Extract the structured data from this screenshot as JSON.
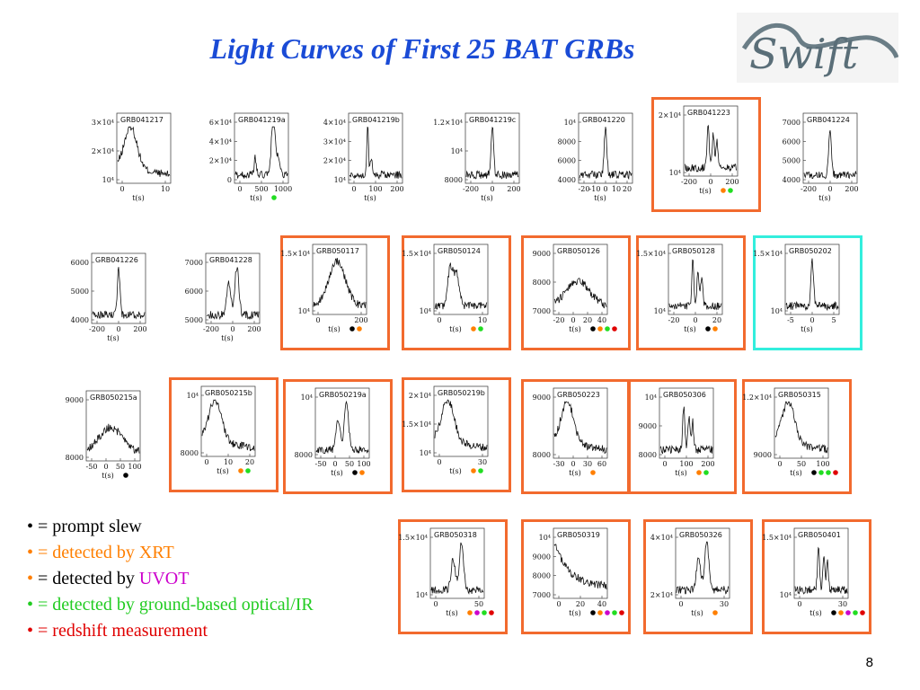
{
  "slide": {
    "title": "Light Curves of First 25 BAT GRBs",
    "page_number": "8",
    "logo_text": "Swift"
  },
  "colors": {
    "prompt_slew": "#000000",
    "xrt": "#ff7f00",
    "uvot": "#cc00cc",
    "optical": "#22dd22",
    "redshift": "#e00000",
    "frame_orange": "#f26a2e",
    "frame_cyan": "#33eedd"
  },
  "legend": [
    {
      "key": "prompt_slew",
      "text": "= prompt slew"
    },
    {
      "key": "xrt",
      "text": "= detected by XRT"
    },
    {
      "key": "uvot",
      "text": "= detected by UVOT"
    },
    {
      "key": "optical",
      "text": "= detected by ground-based optical/IR"
    },
    {
      "key": "redshift",
      "text": "= redshift measurement"
    }
  ],
  "chart_data": [
    {
      "type": "line",
      "title": "GRB041217",
      "xlabel": "t(s)",
      "xticks": [
        "0",
        "10"
      ],
      "yticks": [
        "10⁴",
        "2×10⁴",
        "3×10⁴"
      ],
      "frame": "none",
      "dots": [],
      "shape": "hump-early"
    },
    {
      "type": "line",
      "title": "GRB041219a",
      "xlabel": "t(s)",
      "xticks": [
        "0",
        "500",
        "1000"
      ],
      "yticks": [
        "0",
        "2×10⁴",
        "4×10⁴",
        "6×10⁴"
      ],
      "frame": "none",
      "dots": [
        "optical"
      ],
      "shape": "double-late"
    },
    {
      "type": "line",
      "title": "GRB041219b",
      "xlabel": "t(s)",
      "xticks": [
        "0",
        "100",
        "200"
      ],
      "yticks": [
        "10⁴",
        "2×10⁴",
        "3×10⁴",
        "4×10⁴"
      ],
      "frame": "none",
      "dots": [],
      "shape": "spike-mid"
    },
    {
      "type": "line",
      "title": "GRB041219c",
      "xlabel": "t(s)",
      "xticks": [
        "-200",
        "0",
        "200"
      ],
      "yticks": [
        "8000",
        "10⁴",
        "1.2×10⁴"
      ],
      "frame": "none",
      "dots": [],
      "shape": "spike-center"
    },
    {
      "type": "line",
      "title": "GRB041220",
      "xlabel": "t(s)",
      "xticks": [
        "-20",
        "-10",
        "0",
        "10",
        "20"
      ],
      "yticks": [
        "4000",
        "6000",
        "8000",
        "10⁴"
      ],
      "frame": "none",
      "dots": [],
      "shape": "spike-center"
    },
    {
      "type": "line",
      "title": "GRB041223",
      "xlabel": "t(s)",
      "xticks": [
        "-200",
        "0",
        "200"
      ],
      "yticks": [
        "10⁴",
        "2×10⁴"
      ],
      "frame": "orange",
      "dots": [
        "xrt",
        "optical"
      ],
      "shape": "multi-spike"
    },
    {
      "type": "line",
      "title": "GRB041224",
      "xlabel": "t(s)",
      "xticks": [
        "-200",
        "0",
        "200"
      ],
      "yticks": [
        "4000",
        "5000",
        "6000",
        "7000"
      ],
      "frame": "none",
      "dots": [],
      "shape": "spike-center"
    },
    {
      "type": "line",
      "title": "GRB041226",
      "xlabel": "t(s)",
      "xticks": [
        "-200",
        "0",
        "200"
      ],
      "yticks": [
        "4000",
        "5000",
        "6000"
      ],
      "frame": "none",
      "dots": [],
      "shape": "spike-center"
    },
    {
      "type": "line",
      "title": "GRB041228",
      "xlabel": "t(s)",
      "xticks": [
        "-200",
        "0",
        "200"
      ],
      "yticks": [
        "5000",
        "6000",
        "7000"
      ],
      "frame": "none",
      "dots": [],
      "shape": "double-center"
    },
    {
      "type": "line",
      "title": "GRB050117",
      "xlabel": "t(s)",
      "xticks": [
        "0",
        "200"
      ],
      "yticks": [
        "10⁴",
        "1.5×10⁴"
      ],
      "frame": "orange",
      "dots": [
        "prompt_slew",
        "xrt"
      ],
      "shape": "broad"
    },
    {
      "type": "line",
      "title": "GRB050124",
      "xlabel": "t(s)",
      "xticks": [
        "0",
        "10"
      ],
      "yticks": [
        "10⁴",
        "1.5×10⁴"
      ],
      "frame": "orange",
      "dots": [
        "xrt",
        "optical"
      ],
      "shape": "double-early"
    },
    {
      "type": "line",
      "title": "GRB050126",
      "xlabel": "t(s)",
      "xticks": [
        "-20",
        "0",
        "20",
        "40"
      ],
      "yticks": [
        "7000",
        "8000",
        "9000"
      ],
      "frame": "orange",
      "dots": [
        "prompt_slew",
        "xrt",
        "optical",
        "redshift"
      ],
      "shape": "noisy-bump"
    },
    {
      "type": "line",
      "title": "GRB050128",
      "xlabel": "t(s)",
      "xticks": [
        "-20",
        "0",
        "20"
      ],
      "yticks": [
        "10⁴",
        "1.5×10⁴"
      ],
      "frame": "orange",
      "dots": [
        "prompt_slew",
        "xrt"
      ],
      "shape": "multi-spike"
    },
    {
      "type": "line",
      "title": "GRB050202",
      "xlabel": "t(s)",
      "xticks": [
        "-5",
        "0",
        "5"
      ],
      "yticks": [
        "10⁴",
        "1.5×10⁴"
      ],
      "frame": "cyan",
      "dots": [],
      "shape": "spike-center"
    },
    {
      "type": "line",
      "title": "GRB050215a",
      "xlabel": "t(s)",
      "xticks": [
        "-50",
        "0",
        "50",
        "100"
      ],
      "yticks": [
        "8000",
        "9000"
      ],
      "frame": "none",
      "dots": [
        "prompt_slew"
      ],
      "shape": "noisy-bump"
    },
    {
      "type": "line",
      "title": "GRB050215b",
      "xlabel": "t(s)",
      "xticks": [
        "0",
        "10",
        "20"
      ],
      "yticks": [
        "8000",
        "10⁴"
      ],
      "frame": "orange",
      "dots": [
        "xrt",
        "optical"
      ],
      "shape": "hump-early"
    },
    {
      "type": "line",
      "title": "GRB050219a",
      "xlabel": "t(s)",
      "xticks": [
        "-50",
        "0",
        "50",
        "100"
      ],
      "yticks": [
        "8000",
        "10⁴"
      ],
      "frame": "orange",
      "dots": [
        "prompt_slew",
        "xrt"
      ],
      "shape": "double-center"
    },
    {
      "type": "line",
      "title": "GRB050219b",
      "xlabel": "t(s)",
      "xticks": [
        "0",
        "30"
      ],
      "yticks": [
        "10⁴",
        "1.5×10⁴",
        "2×10⁴"
      ],
      "frame": "orange",
      "dots": [
        "xrt",
        "optical"
      ],
      "shape": "hump-early"
    },
    {
      "type": "line",
      "title": "GRB050223",
      "xlabel": "t(s)",
      "xticks": [
        "-30",
        "0",
        "30",
        "60"
      ],
      "yticks": [
        "8000",
        "9000"
      ],
      "frame": "orange",
      "dots": [
        "xrt"
      ],
      "shape": "hump-early"
    },
    {
      "type": "line",
      "title": "GRB050306",
      "xlabel": "t(s)",
      "xticks": [
        "0",
        "100",
        "200"
      ],
      "yticks": [
        "8000",
        "9000",
        "10⁴"
      ],
      "frame": "orange",
      "dots": [
        "xrt",
        "optical"
      ],
      "shape": "multi-spike"
    },
    {
      "type": "line",
      "title": "GRB050315",
      "xlabel": "t(s)",
      "xticks": [
        "0",
        "50",
        "100"
      ],
      "yticks": [
        "9000",
        "1.2×10⁴"
      ],
      "frame": "orange",
      "dots": [
        "prompt_slew",
        "optical",
        "optical",
        "redshift"
      ],
      "shape": "hump-early"
    },
    {
      "type": "line",
      "title": "GRB050318",
      "xlabel": "t(s)",
      "xticks": [
        "0",
        "50"
      ],
      "yticks": [
        "10⁴",
        "1.5×10⁴"
      ],
      "frame": "orange",
      "dots": [
        "xrt",
        "uvot",
        "optical",
        "redshift"
      ],
      "shape": "double-center"
    },
    {
      "type": "line",
      "title": "GRB050319",
      "xlabel": "t(s)",
      "xticks": [
        "0",
        "20",
        "40"
      ],
      "yticks": [
        "7000",
        "8000",
        "9000",
        "10⁴"
      ],
      "frame": "orange",
      "dots": [
        "prompt_slew",
        "xrt",
        "uvot",
        "optical",
        "redshift"
      ],
      "shape": "decay"
    },
    {
      "type": "line",
      "title": "GRB050326",
      "xlabel": "t(s)",
      "xticks": [
        "0",
        "30"
      ],
      "yticks": [
        "2×10⁴",
        "4×10⁴"
      ],
      "frame": "orange",
      "dots": [
        "xrt"
      ],
      "shape": "double-center"
    },
    {
      "type": "line",
      "title": "GRB050401",
      "xlabel": "t(s)",
      "xticks": [
        "0",
        "30"
      ],
      "yticks": [
        "10⁴",
        "1.5×10⁴"
      ],
      "frame": "orange",
      "dots": [
        "prompt_slew",
        "xrt",
        "uvot",
        "optical",
        "redshift"
      ],
      "shape": "multi-spike"
    }
  ]
}
